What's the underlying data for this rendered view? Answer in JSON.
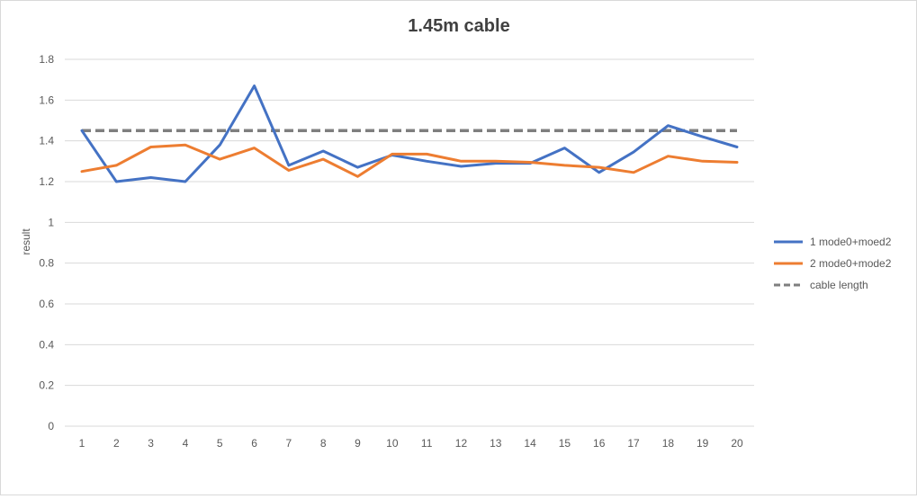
{
  "chart_data": {
    "type": "line",
    "title": "1.45m cable",
    "xlabel": "",
    "ylabel": "result",
    "categories": [
      "1",
      "2",
      "3",
      "4",
      "5",
      "6",
      "7",
      "8",
      "9",
      "10",
      "11",
      "12",
      "13",
      "14",
      "15",
      "16",
      "17",
      "18",
      "19",
      "20"
    ],
    "ylim": [
      0,
      1.8
    ],
    "yticks": [
      "0",
      "0.2",
      "0.4",
      "0.6",
      "0.8",
      "1",
      "1.2",
      "1.4",
      "1.6",
      "1.8"
    ],
    "grid": true,
    "legend_position": "right",
    "series": [
      {
        "name": "1 mode0+moed2",
        "color": "#4472C4",
        "dashed": false,
        "values": [
          1.45,
          1.2,
          1.22,
          1.2,
          1.38,
          1.67,
          1.28,
          1.35,
          1.27,
          1.33,
          1.3,
          1.275,
          1.29,
          1.29,
          1.365,
          1.245,
          1.345,
          1.475,
          1.42,
          1.37
        ]
      },
      {
        "name": "2 mode0+mode2",
        "color": "#ED7D31",
        "dashed": false,
        "values": [
          1.25,
          1.28,
          1.37,
          1.38,
          1.31,
          1.365,
          1.255,
          1.31,
          1.225,
          1.335,
          1.335,
          1.3,
          1.3,
          1.295,
          1.28,
          1.27,
          1.245,
          1.325,
          1.3,
          1.295
        ]
      },
      {
        "name": "cable length",
        "color": "#7F7F7F",
        "dashed": true,
        "values": [
          1.45,
          1.45,
          1.45,
          1.45,
          1.45,
          1.45,
          1.45,
          1.45,
          1.45,
          1.45,
          1.45,
          1.45,
          1.45,
          1.45,
          1.45,
          1.45,
          1.45,
          1.45,
          1.45,
          1.45
        ]
      }
    ]
  }
}
